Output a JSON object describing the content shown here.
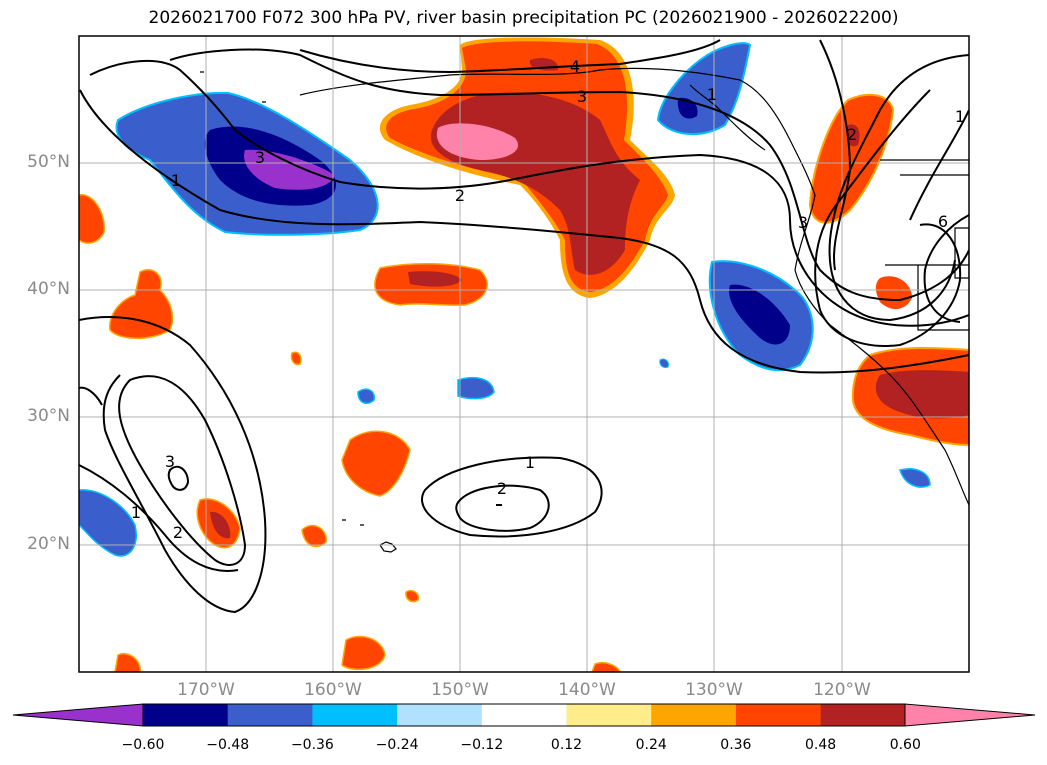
{
  "title": "2026021700 F072 300 hPa PV, river basin precipitation PC (2026021900 - 2026022200)",
  "lat_labels": [
    "50°N",
    "40°N",
    "30°N",
    "20°N"
  ],
  "lon_labels": [
    "170°W",
    "160°W",
    "150°W",
    "140°W",
    "130°W",
    "120°W"
  ],
  "contour_labels": [
    "1",
    "2",
    "3",
    "4",
    "3",
    "1",
    "2",
    "3",
    "1",
    "2",
    "1",
    "2",
    "3",
    "6",
    "1"
  ],
  "colorbar": {
    "ticks": [
      "−0.60",
      "−0.48",
      "−0.36",
      "−0.24",
      "−0.12",
      "0.12",
      "0.24",
      "0.36",
      "0.48",
      "0.60"
    ],
    "colors": [
      "#9932cc",
      "#00008b",
      "#3a5fcd",
      "#00bfff",
      "#b0e2ff",
      "#ffffff",
      "#ffec8b",
      "#ffa500",
      "#ff4500",
      "#b22222",
      "#ff82ab"
    ]
  }
}
